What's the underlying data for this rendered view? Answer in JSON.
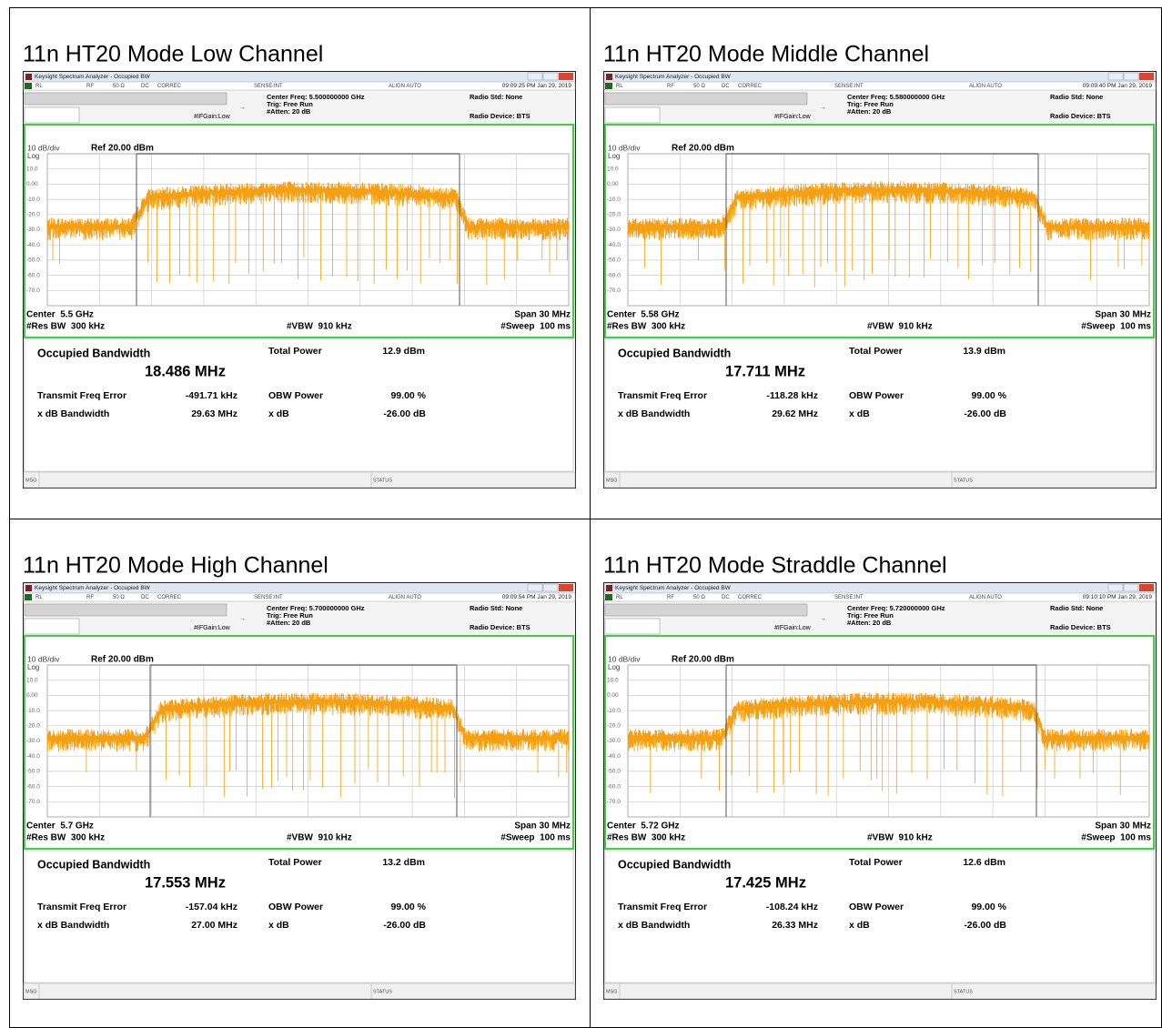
{
  "panels": [
    {
      "title": "11n HT20 Mode Low Channel",
      "window_title": "Keysight Spectrum Analyzer - Occupied BW",
      "status": [
        "RL",
        "RF",
        "50 Ω",
        "DC",
        "CORREC",
        "SENSE:INT",
        "ALIGN AUTO"
      ],
      "timestamp": "09:09:25 PM Jan 29, 2019",
      "center_freq": "Center Freq: 5.500000000 GHz",
      "trig": "Trig: Free Run",
      "atten": "#Atten: 20 dB",
      "ifgain": "#IFGain:Low",
      "radio_std": "Radio Std: None",
      "radio_device": "Radio Device: BTS",
      "scale": "10 dB/div",
      "ref": "Ref 20.00 dBm",
      "log": "Log",
      "y_labels": [
        "10.0",
        "0.00",
        "-10.0",
        "-20.0",
        "-30.0",
        "-40.0",
        "-50.0",
        "-60.0",
        "-70.0"
      ],
      "center": "Center  5.5 GHz",
      "res_bw": "#Res BW  300 kHz",
      "vbw": "#VBW  910 kHz",
      "span": "Span 30 MHz",
      "sweep": "#Sweep  100 ms",
      "results": {
        "obw_label": "Occupied Bandwidth",
        "obw": "18.486 MHz",
        "total_power_label": "Total Power",
        "total_power": "12.9 dBm",
        "freq_error_label": "Transmit Freq Error",
        "freq_error": "-491.71 kHz",
        "obw_power_label": "OBW Power",
        "obw_power": "99.00 %",
        "xdb_bw_label": "x dB Bandwidth",
        "xdb_bw": "29.63 MHz",
        "xdb_label": "x dB",
        "xdb": "-26.00 dB"
      },
      "msg": "MSG",
      "status_label": "STATUS"
    },
    {
      "title": "11n HT20 Mode Middle Channel",
      "window_title": "Keysight Spectrum Analyzer - Occupied BW",
      "status": [
        "RL",
        "RF",
        "50 Ω",
        "DC",
        "CORREC",
        "SENSE:INT",
        "ALIGN AUTO"
      ],
      "timestamp": "09:09:40 PM Jan 29, 2019",
      "center_freq": "Center Freq: 5.580000000 GHz",
      "trig": "Trig: Free Run",
      "atten": "#Atten: 20 dB",
      "ifgain": "#IFGain:Low",
      "radio_std": "Radio Std: None",
      "radio_device": "Radio Device: BTS",
      "scale": "10 dB/div",
      "ref": "Ref 20.00 dBm",
      "log": "Log",
      "y_labels": [
        "10.0",
        "0.00",
        "-10.0",
        "-20.0",
        "-30.0",
        "-40.0",
        "-50.0",
        "-60.0",
        "-70.0"
      ],
      "center": "Center  5.58 GHz",
      "res_bw": "#Res BW  300 kHz",
      "vbw": "#VBW  910 kHz",
      "span": "Span 30 MHz",
      "sweep": "#Sweep  100 ms",
      "results": {
        "obw_label": "Occupied Bandwidth",
        "obw": "17.711 MHz",
        "total_power_label": "Total Power",
        "total_power": "13.9 dBm",
        "freq_error_label": "Transmit Freq Error",
        "freq_error": "-118.28 kHz",
        "obw_power_label": "OBW Power",
        "obw_power": "99.00 %",
        "xdb_bw_label": "x dB Bandwidth",
        "xdb_bw": "29.62 MHz",
        "xdb_label": "x dB",
        "xdb": "-26.00 dB"
      },
      "msg": "MSG",
      "status_label": "STATUS"
    },
    {
      "title": "11n HT20 Mode High Channel",
      "window_title": "Keysight Spectrum Analyzer - Occupied BW",
      "status": [
        "RL",
        "RF",
        "50 Ω",
        "DC",
        "CORREC",
        "SENSE:INT",
        "ALIGN AUTO"
      ],
      "timestamp": "09:09:54 PM Jan 29, 2019",
      "center_freq": "Center Freq: 5.700000000 GHz",
      "trig": "Trig: Free Run",
      "atten": "#Atten: 20 dB",
      "ifgain": "#IFGain:Low",
      "radio_std": "Radio Std: None",
      "radio_device": "Radio Device: BTS",
      "scale": "10 dB/div",
      "ref": "Ref 20.00 dBm",
      "log": "Log",
      "y_labels": [
        "10.0",
        "0.00",
        "-10.0",
        "-20.0",
        "-30.0",
        "-40.0",
        "-50.0",
        "-60.0",
        "-70.0"
      ],
      "center": "Center  5.7 GHz",
      "res_bw": "#Res BW  300 kHz",
      "vbw": "#VBW  910 kHz",
      "span": "Span 30 MHz",
      "sweep": "#Sweep  100 ms",
      "results": {
        "obw_label": "Occupied Bandwidth",
        "obw": "17.553 MHz",
        "total_power_label": "Total Power",
        "total_power": "13.2 dBm",
        "freq_error_label": "Transmit Freq Error",
        "freq_error": "-157.04 kHz",
        "obw_power_label": "OBW Power",
        "obw_power": "99.00 %",
        "xdb_bw_label": "x dB Bandwidth",
        "xdb_bw": "27.00 MHz",
        "xdb_label": "x dB",
        "xdb": "-26.00 dB"
      },
      "msg": "MSG",
      "status_label": "STATUS"
    },
    {
      "title": "11n HT20 Mode Straddle Channel",
      "window_title": "Keysight Spectrum Analyzer - Occupied BW",
      "status": [
        "RL",
        "RF",
        "50 Ω",
        "DC",
        "CORREC",
        "SENSE:INT",
        "ALIGN AUTO"
      ],
      "timestamp": "09:10:10 PM Jan 29, 2019",
      "center_freq": "Center Freq: 5.720000000 GHz",
      "trig": "Trig: Free Run",
      "atten": "#Atten: 20 dB",
      "ifgain": "#IFGain:Low",
      "radio_std": "Radio Std: None",
      "radio_device": "Radio Device: BTS",
      "scale": "10 dB/div",
      "ref": "Ref 20.00 dBm",
      "log": "Log",
      "y_labels": [
        "10.0",
        "0.00",
        "-10.0",
        "-20.0",
        "-30.0",
        "-40.0",
        "-50.0",
        "-60.0",
        "-70.0"
      ],
      "center": "Center  5.72 GHz",
      "res_bw": "#Res BW  300 kHz",
      "vbw": "#VBW  910 kHz",
      "span": "Span 30 MHz",
      "sweep": "#Sweep  100 ms",
      "results": {
        "obw_label": "Occupied Bandwidth",
        "obw": "17.425 MHz",
        "total_power_label": "Total Power",
        "total_power": "12.6 dBm",
        "freq_error_label": "Transmit Freq Error",
        "freq_error": "-108.24 kHz",
        "obw_power_label": "OBW Power",
        "obw_power": "99.00 %",
        "xdb_bw_label": "x dB Bandwidth",
        "xdb_bw": "26.33 MHz",
        "xdb_label": "x dB",
        "xdb": "-26.00 dB"
      },
      "msg": "MSG",
      "status_label": "STATUS"
    }
  ]
}
